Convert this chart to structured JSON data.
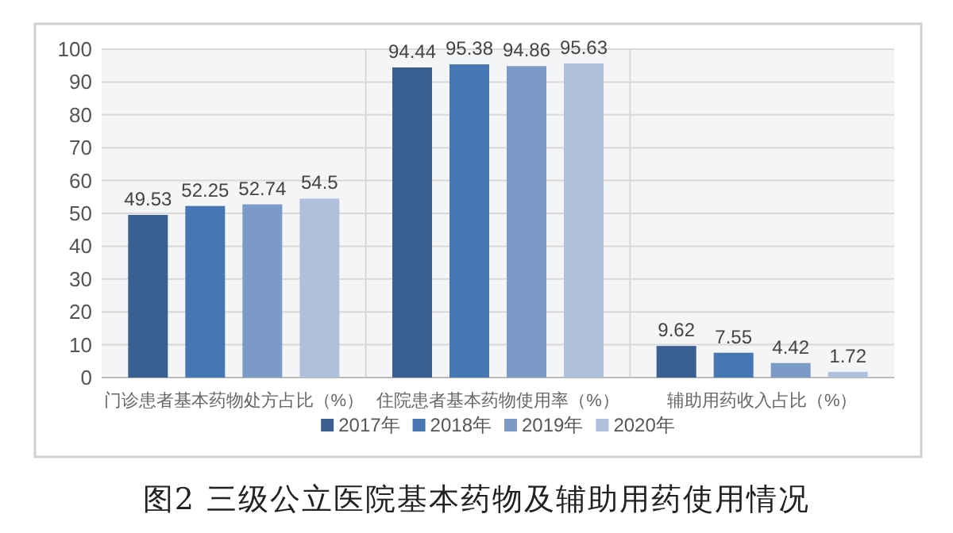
{
  "chart_data": {
    "type": "bar",
    "title": "图2 三级公立医院基本药物及辅助用药使用情况",
    "categories": [
      "门诊患者基本药物处方占比（%）",
      "住院患者基本药物使用率（%）",
      "辅助用药收入占比（%）"
    ],
    "series": [
      {
        "name": "2017年",
        "color": "#3a5f91",
        "values": [
          49.53,
          94.44,
          9.62
        ]
      },
      {
        "name": "2018年",
        "color": "#4676b4",
        "values": [
          52.25,
          95.38,
          7.55
        ]
      },
      {
        "name": "2019年",
        "color": "#7b9ac8",
        "values": [
          52.74,
          94.86,
          4.42
        ]
      },
      {
        "name": "2020年",
        "color": "#b0c0dc",
        "values": [
          54.5,
          95.63,
          1.72
        ]
      }
    ],
    "ylim": [
      0,
      100
    ],
    "yticks": [
      0,
      10,
      20,
      30,
      40,
      50,
      60,
      70,
      80,
      90,
      100
    ],
    "grid": true,
    "legend": "bottom",
    "data_labels": true
  }
}
